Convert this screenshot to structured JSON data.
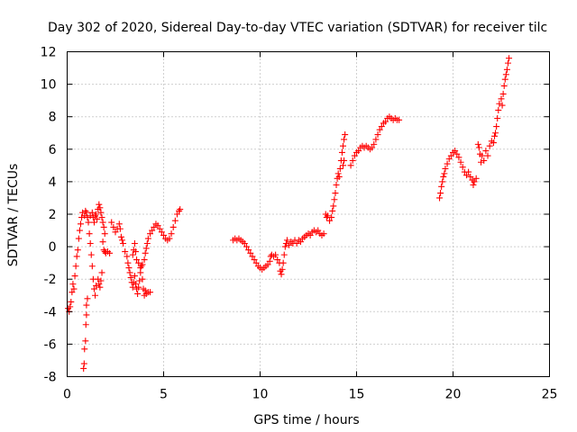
{
  "chart_data": {
    "type": "scatter",
    "title": "Day 302 of 2020, Sidereal Day-to-day VTEC variation (SDTVAR) for receiver tilc",
    "xlabel": "GPS time / hours",
    "ylabel": "SDTVAR / TECUs",
    "xlim": [
      0,
      25
    ],
    "ylim": [
      -8,
      12
    ],
    "x_ticks": [
      "0",
      "5",
      "10",
      "15",
      "20",
      "25"
    ],
    "y_ticks": [
      "-8",
      "-6",
      "-4",
      "-2",
      "0",
      "2",
      "4",
      "6",
      "8",
      "10",
      "12"
    ],
    "grid": true,
    "legend": "none",
    "marker": "plus",
    "color": "#ff0000",
    "series": [
      {
        "points": [
          [
            0.05,
            -3.8
          ],
          [
            0.1,
            -4.0
          ],
          [
            0.15,
            -3.7
          ],
          [
            0.2,
            -3.4
          ],
          [
            0.25,
            -2.8
          ],
          [
            0.3,
            -2.3
          ],
          [
            0.35,
            -2.6
          ],
          [
            0.4,
            -1.8
          ],
          [
            0.45,
            -1.2
          ],
          [
            0.5,
            -0.6
          ],
          [
            0.55,
            -0.2
          ],
          [
            0.6,
            0.5
          ],
          [
            0.65,
            1.0
          ],
          [
            0.7,
            1.4
          ],
          [
            0.75,
            1.8
          ],
          [
            0.8,
            2.1
          ],
          [
            0.85,
            -7.5
          ],
          [
            0.88,
            -7.2
          ],
          [
            0.9,
            -6.3
          ],
          [
            0.95,
            -5.8
          ],
          [
            0.97,
            -4.8
          ],
          [
            1.0,
            -4.2
          ],
          [
            1.0,
            -3.6
          ],
          [
            1.05,
            -3.2
          ],
          [
            0.9,
            1.9
          ],
          [
            0.95,
            2.2
          ],
          [
            1.0,
            2.1
          ],
          [
            1.05,
            1.8
          ],
          [
            1.1,
            1.5
          ],
          [
            1.15,
            0.8
          ],
          [
            1.2,
            0.2
          ],
          [
            1.25,
            -0.5
          ],
          [
            1.3,
            -1.2
          ],
          [
            1.35,
            -2.0
          ],
          [
            1.4,
            -2.6
          ],
          [
            1.45,
            -3.0
          ],
          [
            1.5,
            -2.4
          ],
          [
            1.2,
            1.9
          ],
          [
            1.3,
            2.1
          ],
          [
            1.35,
            1.8
          ],
          [
            1.4,
            1.5
          ],
          [
            1.45,
            1.9
          ],
          [
            1.5,
            2.0
          ],
          [
            1.55,
            1.7
          ],
          [
            1.6,
            2.3
          ],
          [
            1.65,
            2.6
          ],
          [
            1.7,
            2.4
          ],
          [
            1.75,
            2.1
          ],
          [
            1.6,
            -2.0
          ],
          [
            1.65,
            -2.3
          ],
          [
            1.7,
            -2.5
          ],
          [
            1.75,
            -2.1
          ],
          [
            1.8,
            -1.6
          ],
          [
            1.85,
            0.3
          ],
          [
            1.9,
            -0.2
          ],
          [
            1.95,
            -0.3
          ],
          [
            2.0,
            -0.4
          ],
          [
            2.1,
            -0.3
          ],
          [
            2.2,
            -0.4
          ],
          [
            1.8,
            1.8
          ],
          [
            1.85,
            1.5
          ],
          [
            1.9,
            1.2
          ],
          [
            1.95,
            0.8
          ]
        ]
      },
      {
        "points": [
          [
            2.3,
            1.5
          ],
          [
            2.4,
            1.2
          ],
          [
            2.5,
            0.9
          ],
          [
            2.6,
            1.1
          ],
          [
            2.7,
            1.4
          ],
          [
            2.75,
            1.1
          ],
          [
            2.8,
            0.6
          ],
          [
            2.85,
            0.4
          ],
          [
            2.9,
            0.2
          ],
          [
            3.0,
            -0.3
          ],
          [
            3.1,
            -0.6
          ],
          [
            3.15,
            -1.0
          ],
          [
            3.2,
            -1.3
          ],
          [
            3.25,
            -1.6
          ],
          [
            3.3,
            -1.9
          ],
          [
            3.35,
            -2.2
          ],
          [
            3.4,
            -2.5
          ],
          [
            3.45,
            -2.2
          ],
          [
            3.5,
            -1.8
          ],
          [
            3.55,
            -2.3
          ],
          [
            3.6,
            -2.6
          ],
          [
            3.65,
            -2.9
          ],
          [
            3.7,
            -2.5
          ],
          [
            3.75,
            -2.1
          ],
          [
            3.8,
            -1.6
          ],
          [
            3.85,
            -1.2
          ],
          [
            3.9,
            -2.0
          ],
          [
            3.95,
            -2.6
          ],
          [
            4.0,
            -3.0
          ],
          [
            4.05,
            -2.7
          ],
          [
            4.1,
            -2.9
          ],
          [
            4.2,
            -2.8
          ],
          [
            4.3,
            -2.8
          ],
          [
            3.4,
            -0.5
          ],
          [
            3.45,
            -0.2
          ],
          [
            3.5,
            0.2
          ],
          [
            3.55,
            -0.3
          ],
          [
            3.6,
            -0.8
          ],
          [
            3.7,
            -1.0
          ],
          [
            3.8,
            -1.3
          ],
          [
            3.9,
            -1.1
          ],
          [
            4.0,
            -0.8
          ],
          [
            4.05,
            -0.4
          ],
          [
            4.1,
            -0.1
          ],
          [
            4.15,
            0.2
          ],
          [
            4.2,
            0.5
          ],
          [
            4.3,
            0.8
          ],
          [
            4.4,
            1.0
          ],
          [
            4.5,
            1.2
          ],
          [
            4.6,
            1.4
          ],
          [
            4.7,
            1.3
          ],
          [
            4.8,
            1.1
          ],
          [
            4.9,
            0.9
          ],
          [
            5.0,
            0.7
          ],
          [
            5.1,
            0.5
          ],
          [
            5.2,
            0.4
          ],
          [
            5.3,
            0.5
          ],
          [
            5.4,
            0.8
          ],
          [
            5.5,
            1.2
          ],
          [
            5.6,
            1.6
          ],
          [
            5.7,
            2.0
          ],
          [
            5.8,
            2.2
          ],
          [
            5.85,
            2.3
          ]
        ]
      },
      {
        "points": [
          [
            8.6,
            0.4
          ],
          [
            8.7,
            0.5
          ],
          [
            8.8,
            0.4
          ],
          [
            8.9,
            0.5
          ],
          [
            9.0,
            0.4
          ],
          [
            9.1,
            0.3
          ],
          [
            9.2,
            0.2
          ],
          [
            9.3,
            0.0
          ],
          [
            9.4,
            -0.2
          ],
          [
            9.5,
            -0.4
          ],
          [
            9.6,
            -0.6
          ],
          [
            9.7,
            -0.8
          ],
          [
            9.8,
            -1.0
          ],
          [
            9.9,
            -1.2
          ],
          [
            10.0,
            -1.3
          ],
          [
            10.1,
            -1.4
          ],
          [
            10.2,
            -1.3
          ],
          [
            10.3,
            -1.2
          ],
          [
            10.4,
            -1.1
          ],
          [
            10.5,
            -0.9
          ],
          [
            10.55,
            -0.6
          ],
          [
            10.6,
            -0.5
          ],
          [
            10.7,
            -0.6
          ],
          [
            10.8,
            -0.5
          ],
          [
            10.9,
            -0.8
          ],
          [
            11.0,
            -1.0
          ],
          [
            11.05,
            -1.5
          ],
          [
            11.1,
            -1.7
          ],
          [
            11.15,
            -1.4
          ],
          [
            11.2,
            -1.0
          ],
          [
            11.25,
            -0.5
          ],
          [
            11.3,
            0.0
          ],
          [
            11.35,
            0.2
          ],
          [
            11.4,
            0.4
          ],
          [
            11.5,
            0.1
          ],
          [
            11.6,
            0.3
          ],
          [
            11.7,
            0.2
          ],
          [
            11.8,
            0.4
          ],
          [
            11.9,
            0.2
          ],
          [
            12.0,
            0.4
          ],
          [
            12.1,
            0.3
          ],
          [
            12.2,
            0.5
          ],
          [
            12.3,
            0.6
          ],
          [
            12.4,
            0.7
          ],
          [
            12.5,
            0.8
          ],
          [
            12.6,
            0.7
          ],
          [
            12.7,
            0.9
          ],
          [
            12.8,
            1.0
          ],
          [
            12.9,
            0.9
          ],
          [
            13.0,
            1.0
          ],
          [
            13.1,
            0.8
          ],
          [
            13.2,
            0.7
          ],
          [
            13.3,
            0.8
          ],
          [
            13.4,
            2.0
          ],
          [
            13.45,
            1.8
          ],
          [
            13.5,
            1.9
          ],
          [
            13.6,
            1.6
          ],
          [
            13.7,
            1.8
          ],
          [
            13.75,
            2.2
          ],
          [
            13.8,
            2.5
          ],
          [
            13.85,
            2.9
          ],
          [
            13.9,
            3.3
          ],
          [
            13.95,
            3.8
          ],
          [
            14.0,
            4.2
          ],
          [
            14.05,
            4.5
          ],
          [
            14.1,
            4.3
          ],
          [
            14.15,
            4.8
          ],
          [
            14.2,
            5.3
          ],
          [
            14.25,
            5.8
          ],
          [
            14.3,
            6.2
          ],
          [
            14.35,
            6.6
          ],
          [
            14.4,
            6.9
          ],
          [
            14.3,
            5.0
          ],
          [
            14.35,
            5.3
          ]
        ]
      },
      {
        "points": [
          [
            14.7,
            5.0
          ],
          [
            14.8,
            5.3
          ],
          [
            14.9,
            5.6
          ],
          [
            15.0,
            5.8
          ],
          [
            15.1,
            5.9
          ],
          [
            15.2,
            6.1
          ],
          [
            15.3,
            6.2
          ],
          [
            15.4,
            6.1
          ],
          [
            15.5,
            6.2
          ],
          [
            15.6,
            6.1
          ],
          [
            15.7,
            6.0
          ],
          [
            15.8,
            6.1
          ],
          [
            15.9,
            6.3
          ],
          [
            16.0,
            6.6
          ],
          [
            16.1,
            6.9
          ],
          [
            16.2,
            7.2
          ],
          [
            16.3,
            7.4
          ],
          [
            16.4,
            7.6
          ],
          [
            16.5,
            7.7
          ],
          [
            16.6,
            7.9
          ],
          [
            16.7,
            8.0
          ],
          [
            16.8,
            7.9
          ],
          [
            16.9,
            7.8
          ],
          [
            17.0,
            7.9
          ],
          [
            17.1,
            7.8
          ],
          [
            17.2,
            7.8
          ]
        ]
      },
      {
        "points": [
          [
            19.3,
            3.0
          ],
          [
            19.35,
            3.3
          ],
          [
            19.4,
            3.7
          ],
          [
            19.45,
            4.0
          ],
          [
            19.5,
            4.3
          ],
          [
            19.55,
            4.5
          ],
          [
            19.6,
            4.8
          ],
          [
            19.7,
            5.1
          ],
          [
            19.8,
            5.4
          ],
          [
            19.9,
            5.6
          ],
          [
            20.0,
            5.8
          ],
          [
            20.1,
            5.9
          ],
          [
            20.2,
            5.7
          ],
          [
            20.3,
            5.5
          ],
          [
            20.4,
            5.2
          ],
          [
            20.5,
            4.9
          ],
          [
            20.6,
            4.6
          ],
          [
            20.7,
            4.4
          ],
          [
            20.8,
            4.6
          ],
          [
            20.9,
            4.3
          ],
          [
            21.0,
            4.1
          ],
          [
            21.05,
            3.8
          ],
          [
            21.1,
            4.0
          ],
          [
            21.2,
            4.2
          ],
          [
            21.3,
            6.3
          ],
          [
            21.35,
            6.1
          ],
          [
            21.4,
            5.7
          ],
          [
            21.45,
            5.2
          ],
          [
            21.5,
            5.6
          ],
          [
            21.6,
            5.3
          ],
          [
            21.7,
            5.9
          ],
          [
            21.8,
            5.6
          ],
          [
            21.9,
            6.2
          ],
          [
            22.0,
            6.5
          ],
          [
            22.1,
            6.4
          ],
          [
            22.15,
            6.8
          ],
          [
            22.2,
            7.0
          ],
          [
            22.25,
            7.4
          ],
          [
            22.3,
            7.9
          ],
          [
            22.35,
            8.4
          ],
          [
            22.4,
            8.8
          ],
          [
            22.5,
            9.1
          ],
          [
            22.55,
            8.7
          ],
          [
            22.6,
            9.4
          ],
          [
            22.65,
            9.9
          ],
          [
            22.7,
            10.3
          ],
          [
            22.75,
            10.6
          ],
          [
            22.8,
            10.9
          ],
          [
            22.85,
            11.3
          ],
          [
            22.9,
            11.6
          ]
        ]
      }
    ]
  }
}
